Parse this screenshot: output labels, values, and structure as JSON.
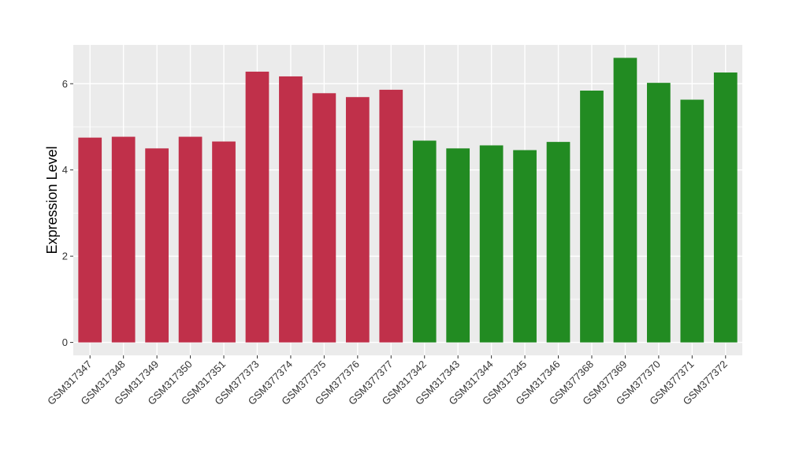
{
  "chart_data": {
    "type": "bar",
    "title": "",
    "xlabel": "",
    "ylabel": "Expression Level",
    "ylim": [
      -0.3,
      6.9
    ],
    "yticks": [
      0,
      2,
      4,
      6
    ],
    "grid": true,
    "categories": [
      "GSM317347",
      "GSM317348",
      "GSM317349",
      "GSM317350",
      "GSM317351",
      "GSM377373",
      "GSM377374",
      "GSM377375",
      "GSM377376",
      "GSM377377",
      "GSM317342",
      "GSM317343",
      "GSM317344",
      "GSM317345",
      "GSM317346",
      "GSM377368",
      "GSM377369",
      "GSM377370",
      "GSM377371",
      "GSM377372"
    ],
    "values": [
      4.75,
      4.77,
      4.5,
      4.77,
      4.66,
      6.28,
      6.17,
      5.78,
      5.69,
      5.86,
      4.68,
      4.5,
      4.57,
      4.46,
      4.65,
      5.84,
      6.6,
      6.02,
      5.63,
      6.26
    ],
    "colors": [
      "#c0304a",
      "#c0304a",
      "#c0304a",
      "#c0304a",
      "#c0304a",
      "#c0304a",
      "#c0304a",
      "#c0304a",
      "#c0304a",
      "#c0304a",
      "#228b22",
      "#228b22",
      "#228b22",
      "#228b22",
      "#228b22",
      "#228b22",
      "#228b22",
      "#228b22",
      "#228b22",
      "#228b22"
    ],
    "panel_background": "#ebebeb",
    "gridline_color": "#ffffff"
  }
}
